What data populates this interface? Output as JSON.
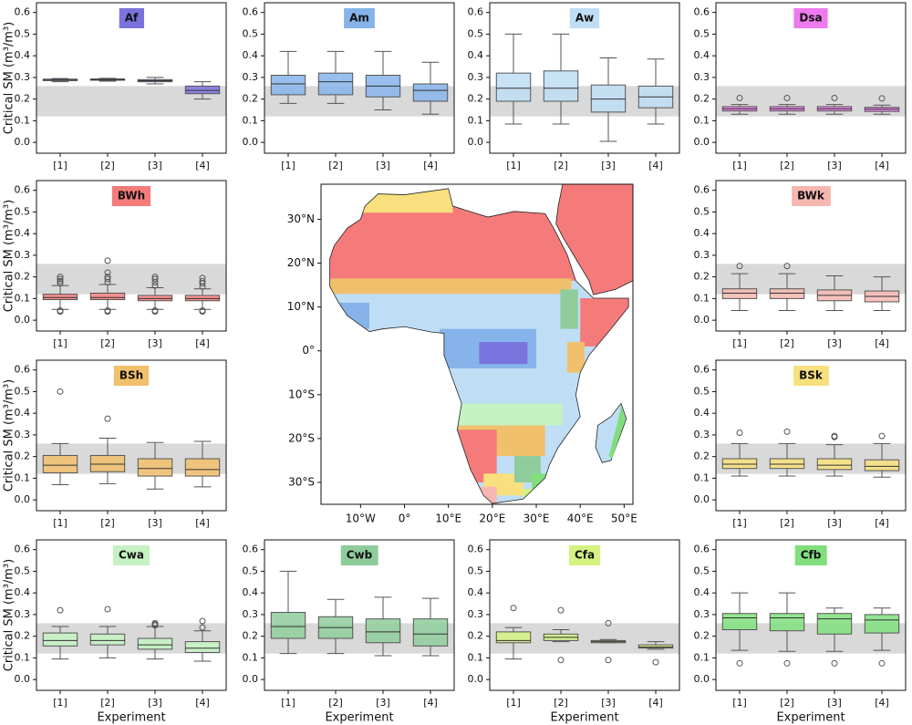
{
  "chart_data": [
    {
      "type": "box",
      "title": "Af",
      "color": "#7b73dd",
      "y_label": "Critical SM (m³/m³)",
      "categories": [
        "[1]",
        "[2]",
        "[3]",
        "[4]"
      ],
      "ylim": [
        -0.05,
        0.645
      ],
      "yticks": [
        {
          "value": 0,
          "label": "0.0"
        },
        0.1,
        0.2,
        0.3,
        0.4,
        0.5,
        0.6
      ],
      "reference_band": [
        0.12,
        0.26
      ],
      "boxes": [
        {
          "whislo": 0.28,
          "q1": 0.285,
          "med": 0.29,
          "q3": 0.292,
          "whishi": 0.295,
          "fliers": []
        },
        {
          "whislo": 0.283,
          "q1": 0.287,
          "med": 0.29,
          "q3": 0.293,
          "whishi": 0.296,
          "fliers": []
        },
        {
          "whislo": 0.27,
          "q1": 0.28,
          "med": 0.285,
          "q3": 0.29,
          "whishi": 0.3,
          "fliers": []
        },
        {
          "whislo": 0.2,
          "q1": 0.225,
          "med": 0.24,
          "q3": 0.26,
          "whishi": 0.28,
          "fliers": []
        }
      ]
    },
    {
      "type": "box",
      "title": "Am",
      "color": "#86b4ea",
      "categories": [
        "[1]",
        "[2]",
        "[3]",
        "[4]"
      ],
      "ylim": [
        -0.05,
        0.645
      ],
      "yticks": [
        {
          "value": 0,
          "label": "0.0"
        },
        0.1,
        0.2,
        0.3,
        0.4,
        0.5,
        0.6
      ],
      "reference_band": [
        0.12,
        0.26
      ],
      "boxes": [
        {
          "whislo": 0.18,
          "q1": 0.22,
          "med": 0.27,
          "q3": 0.31,
          "whishi": 0.42,
          "fliers": []
        },
        {
          "whislo": 0.18,
          "q1": 0.22,
          "med": 0.28,
          "q3": 0.32,
          "whishi": 0.42,
          "fliers": []
        },
        {
          "whislo": 0.15,
          "q1": 0.21,
          "med": 0.26,
          "q3": 0.31,
          "whishi": 0.42,
          "fliers": []
        },
        {
          "whislo": 0.13,
          "q1": 0.19,
          "med": 0.24,
          "q3": 0.27,
          "whishi": 0.37,
          "fliers": []
        }
      ]
    },
    {
      "type": "box",
      "title": "Aw",
      "color": "#bfdef5",
      "categories": [
        "[1]",
        "[2]",
        "[3]",
        "[4]"
      ],
      "ylim": [
        -0.05,
        0.645
      ],
      "yticks": [
        {
          "value": 0,
          "label": "0.0"
        },
        0.1,
        0.2,
        0.3,
        0.4,
        0.5,
        0.6
      ],
      "reference_band": [
        0.12,
        0.26
      ],
      "boxes": [
        {
          "whislo": 0.085,
          "q1": 0.19,
          "med": 0.25,
          "q3": 0.32,
          "whishi": 0.5,
          "fliers": []
        },
        {
          "whislo": 0.085,
          "q1": 0.19,
          "med": 0.25,
          "q3": 0.33,
          "whishi": 0.5,
          "fliers": []
        },
        {
          "whislo": 0.005,
          "q1": 0.14,
          "med": 0.2,
          "q3": 0.265,
          "whishi": 0.39,
          "fliers": []
        },
        {
          "whislo": 0.085,
          "q1": 0.16,
          "med": 0.21,
          "q3": 0.26,
          "whishi": 0.385,
          "fliers": []
        }
      ]
    },
    {
      "type": "box",
      "title": "Dsa",
      "color": "#ee7aee",
      "categories": [
        "[1]",
        "[2]",
        "[3]",
        "[4]"
      ],
      "ylim": [
        -0.05,
        0.645
      ],
      "yticks": [
        {
          "value": 0,
          "label": "0.0"
        },
        0.1,
        0.2,
        0.3,
        0.4,
        0.5,
        0.6
      ],
      "reference_band": [
        0.12,
        0.26
      ],
      "boxes": [
        {
          "whislo": 0.13,
          "q1": 0.145,
          "med": 0.155,
          "q3": 0.165,
          "whishi": 0.175,
          "fliers": [
            0.205
          ]
        },
        {
          "whislo": 0.13,
          "q1": 0.145,
          "med": 0.155,
          "q3": 0.165,
          "whishi": 0.175,
          "fliers": [
            0.205
          ]
        },
        {
          "whislo": 0.13,
          "q1": 0.145,
          "med": 0.155,
          "q3": 0.165,
          "whishi": 0.175,
          "fliers": [
            0.205
          ]
        },
        {
          "whislo": 0.13,
          "q1": 0.143,
          "med": 0.153,
          "q3": 0.162,
          "whishi": 0.172,
          "fliers": [
            0.203
          ]
        }
      ]
    },
    {
      "type": "box",
      "title": "BWh",
      "color": "#f57b7b",
      "y_label": "Critical SM (m³/m³)",
      "categories": [
        "[1]",
        "[2]",
        "[3]",
        "[4]"
      ],
      "ylim": [
        -0.05,
        0.645
      ],
      "yticks": [
        {
          "value": 0,
          "label": "0.0"
        },
        0.1,
        0.2,
        0.3,
        0.4,
        0.5,
        0.6
      ],
      "reference_band": [
        0.12,
        0.26
      ],
      "boxes": [
        {
          "whislo": 0.05,
          "q1": 0.095,
          "med": 0.105,
          "q3": 0.12,
          "whishi": 0.16,
          "fliers": [
            0.04,
            0.045,
            0.17,
            0.18,
            0.19,
            0.2
          ]
        },
        {
          "whislo": 0.05,
          "q1": 0.095,
          "med": 0.105,
          "q3": 0.125,
          "whishi": 0.165,
          "fliers": [
            0.04,
            0.045,
            0.175,
            0.19,
            0.2,
            0.22,
            0.275
          ]
        },
        {
          "whislo": 0.05,
          "q1": 0.09,
          "med": 0.1,
          "q3": 0.115,
          "whishi": 0.15,
          "fliers": [
            0.04,
            0.045,
            0.16,
            0.175,
            0.19,
            0.2
          ]
        },
        {
          "whislo": 0.05,
          "q1": 0.09,
          "med": 0.1,
          "q3": 0.115,
          "whishi": 0.145,
          "fliers": [
            0.04,
            0.045,
            0.155,
            0.17,
            0.18,
            0.195
          ]
        }
      ]
    },
    {
      "type": "box",
      "title": "BWk",
      "color": "#f5b7b0",
      "categories": [
        "[1]",
        "[2]",
        "[3]",
        "[4]"
      ],
      "ylim": [
        -0.05,
        0.645
      ],
      "yticks": [
        {
          "value": 0,
          "label": "0.0"
        },
        0.1,
        0.2,
        0.3,
        0.4,
        0.5,
        0.6
      ],
      "reference_band": [
        0.12,
        0.26
      ],
      "boxes": [
        {
          "whislo": 0.045,
          "q1": 0.1,
          "med": 0.125,
          "q3": 0.145,
          "whishi": 0.215,
          "fliers": [
            0.25
          ]
        },
        {
          "whislo": 0.045,
          "q1": 0.1,
          "med": 0.125,
          "q3": 0.145,
          "whishi": 0.215,
          "fliers": [
            0.25
          ]
        },
        {
          "whislo": 0.045,
          "q1": 0.09,
          "med": 0.115,
          "q3": 0.14,
          "whishi": 0.205,
          "fliers": []
        },
        {
          "whislo": 0.045,
          "q1": 0.085,
          "med": 0.11,
          "q3": 0.135,
          "whishi": 0.2,
          "fliers": []
        }
      ]
    },
    {
      "type": "box",
      "title": "BSh",
      "color": "#f1c06c",
      "y_label": "Critical SM (m³/m³)",
      "categories": [
        "[1]",
        "[2]",
        "[3]",
        "[4]"
      ],
      "ylim": [
        -0.05,
        0.645
      ],
      "yticks": [
        {
          "value": 0,
          "label": "0.0"
        },
        0.1,
        0.2,
        0.3,
        0.4,
        0.5,
        0.6
      ],
      "reference_band": [
        0.12,
        0.26
      ],
      "boxes": [
        {
          "whislo": 0.07,
          "q1": 0.125,
          "med": 0.16,
          "q3": 0.205,
          "whishi": 0.26,
          "fliers": [
            0.5
          ]
        },
        {
          "whislo": 0.075,
          "q1": 0.13,
          "med": 0.165,
          "q3": 0.205,
          "whishi": 0.285,
          "fliers": [
            0.375
          ]
        },
        {
          "whislo": 0.05,
          "q1": 0.11,
          "med": 0.145,
          "q3": 0.19,
          "whishi": 0.265,
          "fliers": []
        },
        {
          "whislo": 0.06,
          "q1": 0.11,
          "med": 0.14,
          "q3": 0.19,
          "whishi": 0.27,
          "fliers": []
        }
      ]
    },
    {
      "type": "box",
      "title": "BSk",
      "color": "#f8e07e",
      "categories": [
        "[1]",
        "[2]",
        "[3]",
        "[4]"
      ],
      "ylim": [
        -0.05,
        0.645
      ],
      "yticks": [
        {
          "value": 0,
          "label": "0.0"
        },
        0.1,
        0.2,
        0.3,
        0.4,
        0.5,
        0.6
      ],
      "reference_band": [
        0.12,
        0.26
      ],
      "boxes": [
        {
          "whislo": 0.11,
          "q1": 0.145,
          "med": 0.165,
          "q3": 0.19,
          "whishi": 0.26,
          "fliers": [
            0.31
          ]
        },
        {
          "whislo": 0.11,
          "q1": 0.145,
          "med": 0.165,
          "q3": 0.19,
          "whishi": 0.26,
          "fliers": [
            0.315
          ]
        },
        {
          "whislo": 0.11,
          "q1": 0.14,
          "med": 0.16,
          "q3": 0.19,
          "whishi": 0.255,
          "fliers": [
            0.29,
            0.295
          ]
        },
        {
          "whislo": 0.105,
          "q1": 0.135,
          "med": 0.155,
          "q3": 0.185,
          "whishi": 0.26,
          "fliers": [
            0.295
          ]
        }
      ]
    },
    {
      "type": "box",
      "title": "Cwa",
      "color": "#c4f2c2",
      "y_label": "Critical SM (m³/m³)",
      "x_label": "Experiment",
      "categories": [
        "[1]",
        "[2]",
        "[3]",
        "[4]"
      ],
      "ylim": [
        -0.05,
        0.645
      ],
      "yticks": [
        {
          "value": 0,
          "label": "0.0"
        },
        0.1,
        0.2,
        0.3,
        0.4,
        0.5,
        0.6
      ],
      "reference_band": [
        0.12,
        0.26
      ],
      "boxes": [
        {
          "whislo": 0.095,
          "q1": 0.155,
          "med": 0.18,
          "q3": 0.215,
          "whishi": 0.245,
          "fliers": [
            0.32
          ]
        },
        {
          "whislo": 0.1,
          "q1": 0.16,
          "med": 0.18,
          "q3": 0.21,
          "whishi": 0.245,
          "fliers": [
            0.325
          ]
        },
        {
          "whislo": 0.095,
          "q1": 0.14,
          "med": 0.16,
          "q3": 0.19,
          "whishi": 0.245,
          "fliers": [
            0.25,
            0.255,
            0.26
          ]
        },
        {
          "whislo": 0.085,
          "q1": 0.125,
          "med": 0.145,
          "q3": 0.175,
          "whishi": 0.225,
          "fliers": [
            0.24,
            0.27
          ]
        }
      ]
    },
    {
      "type": "box",
      "title": "Cwb",
      "color": "#8fcc9c",
      "x_label": "Experiment",
      "categories": [
        "[1]",
        "[2]",
        "[3]",
        "[4]"
      ],
      "ylim": [
        -0.05,
        0.645
      ],
      "yticks": [
        {
          "value": 0,
          "label": "0.0"
        },
        0.1,
        0.2,
        0.3,
        0.4,
        0.5,
        0.6
      ],
      "reference_band": [
        0.12,
        0.26
      ],
      "boxes": [
        {
          "whislo": 0.12,
          "q1": 0.19,
          "med": 0.245,
          "q3": 0.31,
          "whishi": 0.5,
          "fliers": []
        },
        {
          "whislo": 0.12,
          "q1": 0.19,
          "med": 0.24,
          "q3": 0.29,
          "whishi": 0.37,
          "fliers": []
        },
        {
          "whislo": 0.11,
          "q1": 0.17,
          "med": 0.22,
          "q3": 0.28,
          "whishi": 0.38,
          "fliers": []
        },
        {
          "whislo": 0.11,
          "q1": 0.155,
          "med": 0.21,
          "q3": 0.28,
          "whishi": 0.375,
          "fliers": []
        }
      ]
    },
    {
      "type": "box",
      "title": "Cfa",
      "color": "#d3f280",
      "x_label": "Experiment",
      "categories": [
        "[1]",
        "[2]",
        "[3]",
        "[4]"
      ],
      "ylim": [
        -0.05,
        0.645
      ],
      "yticks": [
        {
          "value": 0,
          "label": "0.0"
        },
        0.1,
        0.2,
        0.3,
        0.4,
        0.5,
        0.6
      ],
      "reference_band": [
        0.12,
        0.26
      ],
      "boxes": [
        {
          "whislo": 0.095,
          "q1": 0.17,
          "med": 0.18,
          "q3": 0.22,
          "whishi": 0.24,
          "fliers": [
            0.33
          ]
        },
        {
          "whislo": 0.175,
          "q1": 0.18,
          "med": 0.195,
          "q3": 0.21,
          "whishi": 0.23,
          "fliers": [
            0.09,
            0.32
          ]
        },
        {
          "whislo": 0.17,
          "q1": 0.17,
          "med": 0.175,
          "q3": 0.18,
          "whishi": 0.185,
          "fliers": [
            0.09,
            0.26
          ]
        },
        {
          "whislo": 0.14,
          "q1": 0.145,
          "med": 0.15,
          "q3": 0.16,
          "whishi": 0.175,
          "fliers": [
            0.08
          ]
        }
      ]
    },
    {
      "type": "box",
      "title": "Cfb",
      "color": "#80df7c",
      "x_label": "Experiment",
      "categories": [
        "[1]",
        "[2]",
        "[3]",
        "[4]"
      ],
      "ylim": [
        -0.05,
        0.645
      ],
      "yticks": [
        {
          "value": 0,
          "label": "0.0"
        },
        0.1,
        0.2,
        0.3,
        0.4,
        0.5,
        0.6
      ],
      "reference_band": [
        0.12,
        0.26
      ],
      "boxes": [
        {
          "whislo": 0.135,
          "q1": 0.23,
          "med": 0.285,
          "q3": 0.305,
          "whishi": 0.4,
          "fliers": [
            0.075
          ]
        },
        {
          "whislo": 0.13,
          "q1": 0.225,
          "med": 0.285,
          "q3": 0.305,
          "whishi": 0.4,
          "fliers": [
            0.075
          ]
        },
        {
          "whislo": 0.13,
          "q1": 0.21,
          "med": 0.28,
          "q3": 0.305,
          "whishi": 0.33,
          "fliers": [
            0.075
          ]
        },
        {
          "whislo": 0.135,
          "q1": 0.215,
          "med": 0.275,
          "q3": 0.3,
          "whishi": 0.33,
          "fliers": [
            0.075
          ]
        }
      ]
    },
    {
      "type": "map",
      "xlim": [
        -19,
        52
      ],
      "ylim": [
        -35,
        38
      ],
      "xticks": [
        {
          "value": -10,
          "label": "10°W"
        },
        {
          "value": 0,
          "label": "0°"
        },
        {
          "value": 10,
          "label": "10°E"
        },
        {
          "value": 20,
          "label": "20°E"
        },
        {
          "value": 30,
          "label": "30°E"
        },
        {
          "value": 40,
          "label": "40°E"
        },
        {
          "value": 50,
          "label": "50°E"
        }
      ],
      "yticks": [
        {
          "value": -30,
          "label": "30°S"
        },
        {
          "value": -20,
          "label": "20°S"
        },
        {
          "value": -10,
          "label": "10°S"
        },
        {
          "value": 0,
          "label": "0°"
        },
        {
          "value": 10,
          "label": "10°N"
        },
        {
          "value": 20,
          "label": "20°N"
        },
        {
          "value": 30,
          "label": "30°N"
        }
      ]
    }
  ]
}
